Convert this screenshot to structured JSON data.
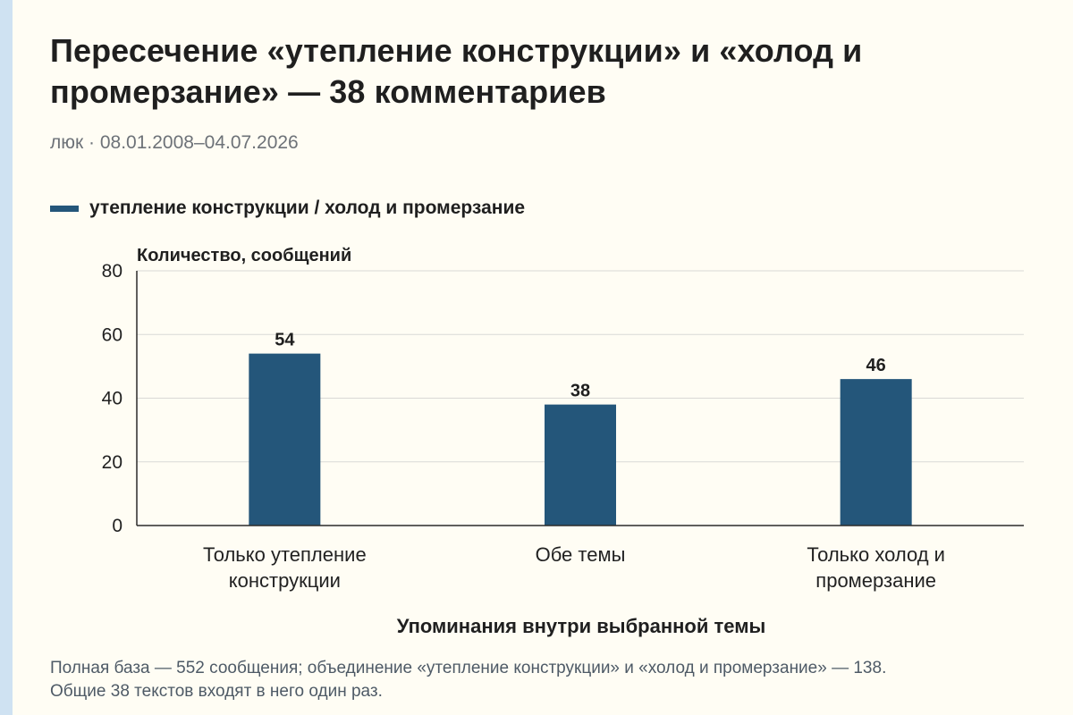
{
  "page": {
    "title": "Пересечение «утепление конструкции» и «холод и промерзание» — 38 комментариев",
    "subtitle": "люк · 08.01.2008–04.07.2026",
    "footnote": "Полная база — 552 сообщения; объединение «утепление конструкции» и «холод и промерзание» — 138. Общие 38 текстов входят в него один раз."
  },
  "colors": {
    "bar": "#24567a",
    "grid": "#d9d9d6",
    "axis": "#2b2b2b",
    "background": "#fffdf4",
    "accent_strip": "#cfe2f2"
  },
  "chart_data": {
    "type": "bar",
    "categories": [
      [
        "Только утепление",
        "конструкции"
      ],
      [
        "Обе темы"
      ],
      [
        "Только холод и",
        "промерзание"
      ]
    ],
    "series": [
      {
        "name": "утепление конструкции / холод и промерзание",
        "values": [
          54,
          38,
          46
        ]
      }
    ],
    "ylabel": "Количество, сообщений",
    "xlabel": "Упоминания внутри выбранной темы",
    "ylim": [
      0,
      80
    ],
    "yticks": [
      0,
      20,
      40,
      60,
      80
    ],
    "grid": true,
    "legend": "top-left",
    "data_labels": true
  }
}
